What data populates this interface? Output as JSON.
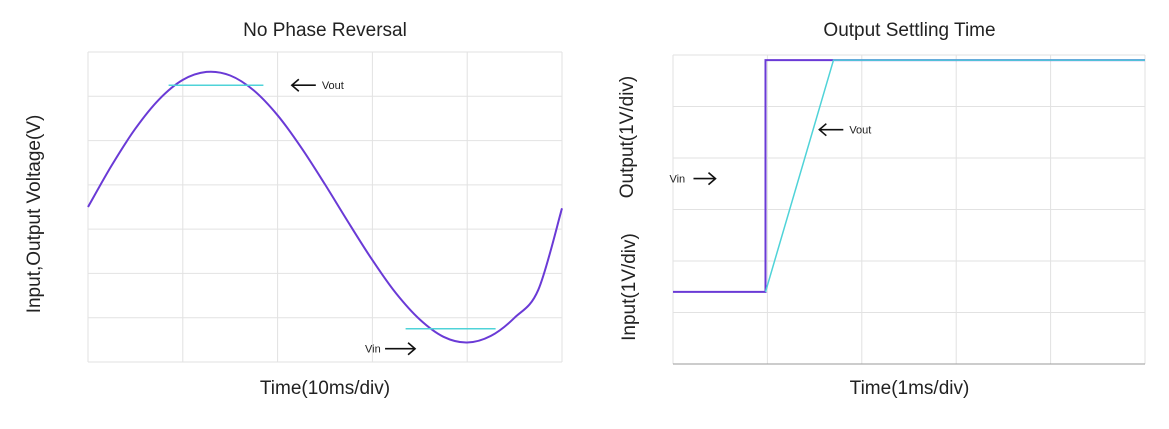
{
  "colors": {
    "input": "#6a3ad6",
    "output": "#4fd3d8",
    "grid": "#e2e2e2",
    "annotation": "#111111"
  },
  "chart_data": [
    {
      "type": "line",
      "title": "No Phase Reversal",
      "xlabel": "Time(10ms/div)",
      "ylabel": "Input,Output Voltage(V)",
      "grid": true,
      "x_divisions": 5,
      "y_divisions": 7,
      "xlim": [
        0,
        50
      ],
      "ylim": [
        -3.5,
        3.5
      ],
      "series": [
        {
          "key": "input",
          "x": [
            0,
            2.5,
            5,
            7.5,
            10,
            12.5,
            15,
            17.5,
            20,
            22.5,
            25,
            27.5,
            30,
            32.5,
            35,
            37.5,
            40,
            42.5,
            45,
            47.5,
            50
          ],
          "y": [
            0,
            0.94,
            1.77,
            2.43,
            2.87,
            3.05,
            2.97,
            2.63,
            2.07,
            1.34,
            0.51,
            -0.36,
            -1.2,
            -1.95,
            -2.54,
            -2.93,
            -3.06,
            -2.91,
            -2.5,
            -1.87,
            -0.03
          ]
        },
        {
          "key": "output",
          "x": [
            8.5,
            18.5
          ],
          "y": [
            2.75,
            2.75
          ],
          "x2": [
            33.5,
            43
          ],
          "y2": [
            -2.75,
            -2.75
          ]
        }
      ],
      "annotations": [
        {
          "text": "Vout",
          "x": 21.5,
          "y": 2.75
        },
        {
          "text": "Vin",
          "x": 34.5,
          "y": -3.2
        }
      ]
    },
    {
      "type": "line",
      "title": "Output Settling Time",
      "xlabel": "Time(1ms/div)",
      "ylabel_top": "Output(1V/div)",
      "ylabel_bottom": "Input(1V/div)",
      "grid": true,
      "x_divisions": 5,
      "y_divisions": 6,
      "xlim": [
        0,
        5
      ],
      "ylim": [
        -1.4,
        4.6
      ],
      "series": [
        {
          "key": "input",
          "x": [
            0,
            0.98,
            0.98,
            5
          ],
          "y": [
            0,
            0,
            4.5,
            4.5
          ]
        },
        {
          "key": "output",
          "x": [
            0.98,
            1.7,
            5
          ],
          "y": [
            0,
            4.5,
            4.5
          ]
        }
      ],
      "annotations": [
        {
          "text": "Vout",
          "x": 1.55,
          "y": 3.15
        },
        {
          "text": "Vin",
          "x": 0.45,
          "y": 2.2
        }
      ]
    }
  ]
}
